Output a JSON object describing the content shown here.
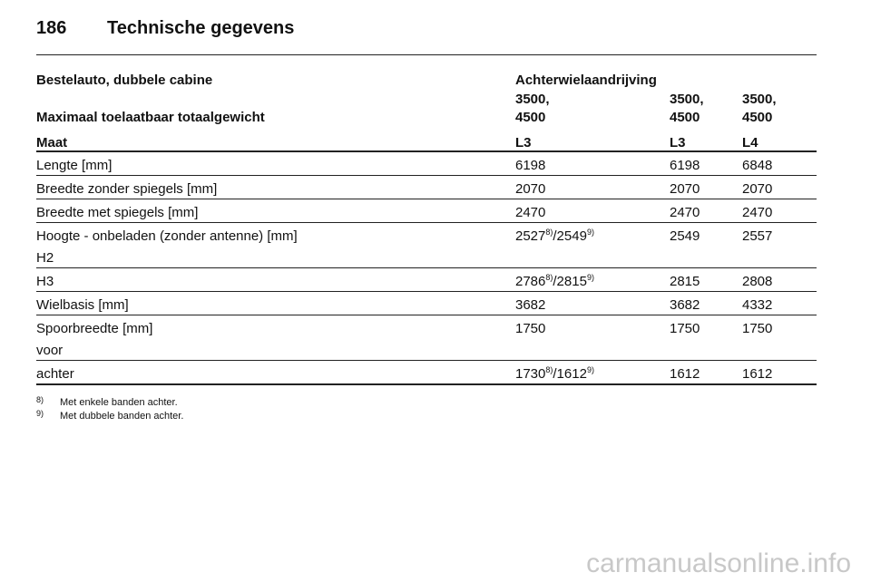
{
  "header": {
    "page_number": "186",
    "title": "Technische gegevens"
  },
  "table": {
    "drive": [
      "Bestelauto, dubbele cabine",
      "Achterwielaandrijving"
    ],
    "weight": {
      "label": "Maximaal toelaatbaar totaalgewicht",
      "values": [
        [
          "3500,",
          "4500"
        ],
        [
          "3500,",
          "4500"
        ],
        [
          "3500,",
          "4500"
        ]
      ]
    },
    "columns": [
      "Maat",
      "L3",
      "L3",
      "L4"
    ],
    "rows": [
      {
        "label": [
          "Lengte [mm]"
        ],
        "values": [
          "6198",
          "6198",
          "6848"
        ]
      },
      {
        "label": [
          "Breedte zonder spiegels [mm]"
        ],
        "values": [
          "2070",
          "2070",
          "2070"
        ]
      },
      {
        "label": [
          "Breedte met spiegels [mm]"
        ],
        "values": [
          "2470",
          "2470",
          "2470"
        ]
      },
      {
        "label": [
          "Hoogte - onbeladen (zonder antenne) [mm]",
          "H2"
        ],
        "values": [
          [
            "2527",
            "8)",
            "/2549",
            "9)"
          ],
          "2549",
          "2557"
        ]
      },
      {
        "label": [
          "H3"
        ],
        "values": [
          [
            "2786",
            "8)",
            "/2815",
            "9)"
          ],
          "2815",
          "2808"
        ]
      },
      {
        "label": [
          "Wielbasis [mm]"
        ],
        "values": [
          "3682",
          "3682",
          "4332"
        ]
      },
      {
        "label": [
          "Spoorbreedte [mm]",
          "voor"
        ],
        "values": [
          "1750",
          "1750",
          "1750"
        ]
      },
      {
        "label": [
          "achter"
        ],
        "values": [
          [
            "1730",
            "8)",
            "/1612",
            "9)"
          ],
          "1612",
          "1612"
        ]
      }
    ]
  },
  "footnotes": [
    {
      "mark": "8)",
      "text": "Met enkele banden achter."
    },
    {
      "mark": "9)",
      "text": "Met dubbele banden achter."
    }
  ],
  "watermark": "carmanualsonline.info"
}
